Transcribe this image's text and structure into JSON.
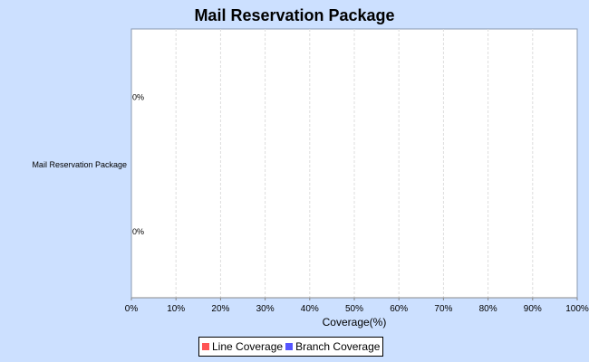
{
  "chart_data": {
    "type": "bar",
    "orientation": "horizontal",
    "title": "Mail Reservation Package",
    "categories": [
      "Mail Reservation Package"
    ],
    "series": [
      {
        "name": "Line Coverage",
        "values": [
          0
        ],
        "color": "#ff5555",
        "label": "0%"
      },
      {
        "name": "Branch Coverage",
        "values": [
          0
        ],
        "color": "#5555ff",
        "label": "0%"
      }
    ],
    "xlabel": "Coverage(%)",
    "ylabel": "",
    "xlim": [
      0,
      100
    ],
    "xticks": [
      "0%",
      "10%",
      "20%",
      "30%",
      "40%",
      "50%",
      "60%",
      "70%",
      "80%",
      "90%",
      "100%"
    ],
    "grid": true,
    "legend": "bottom"
  }
}
